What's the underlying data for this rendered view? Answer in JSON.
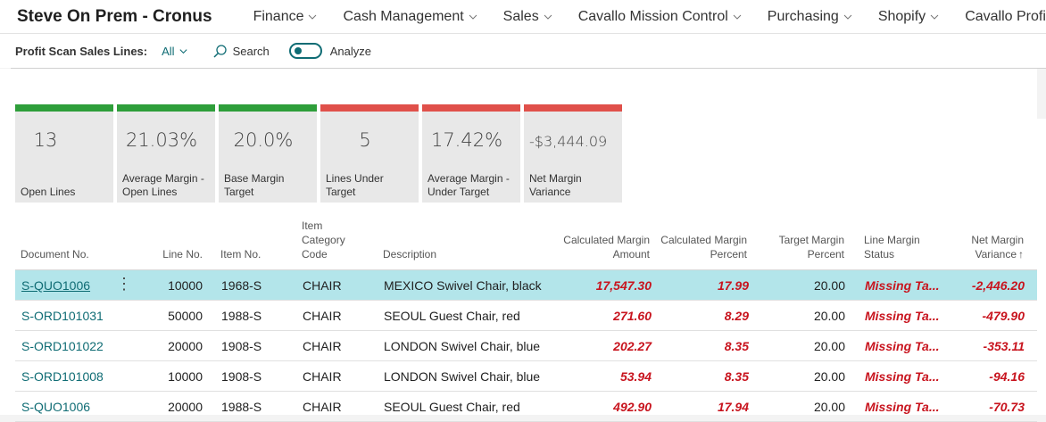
{
  "app": {
    "title": "Steve On Prem - Cronus",
    "nav": [
      {
        "label": "Finance"
      },
      {
        "label": "Cash Management"
      },
      {
        "label": "Sales"
      },
      {
        "label": "Cavallo Mission Control"
      },
      {
        "label": "Purchasing"
      },
      {
        "label": "Shopify"
      },
      {
        "label": "Cavallo Profit Sca"
      }
    ]
  },
  "actionbar": {
    "caption": "Profit Scan Sales Lines:",
    "filter": "All",
    "search_label": "Search",
    "analyze_label": "Analyze"
  },
  "colors": {
    "accent": "#0f6c74",
    "tile_good": "#2e9e3a",
    "tile_bad": "#e0504a",
    "negative": "#c8141e",
    "selected_row": "#b3e5ea"
  },
  "tiles": [
    {
      "value": "13",
      "label": "Open Lines",
      "status": "good"
    },
    {
      "value": "21.03%",
      "label": "Average Margin - Open Lines",
      "status": "good"
    },
    {
      "value": "20.0%",
      "label": "Base Margin Target",
      "status": "good"
    },
    {
      "value": "5",
      "label": "Lines Under Target",
      "status": "bad"
    },
    {
      "value": "17.42%",
      "label": "Average Margin - Under Target",
      "status": "bad"
    },
    {
      "value": "-$3,444.09",
      "label": "Net Margin Variance",
      "status": "bad"
    }
  ],
  "table": {
    "headers": {
      "doc": "Document No.",
      "line": "Line No.",
      "item": "Item No.",
      "category": "Item Category Code",
      "desc": "Description",
      "calc_amt": "Calculated Margin Amount",
      "calc_pct": "Calculated Margin Percent",
      "target": "Target Margin Percent",
      "status": "Line Margin Status",
      "variance": "Net Margin Variance"
    },
    "sort_arrow": "↑",
    "row_menu": "⋮",
    "rows": [
      {
        "doc": "S-QUO1006",
        "line": "10000",
        "item": "1968-S",
        "category": "CHAIR",
        "desc": "MEXICO Swivel Chair, black",
        "calc_amt": "17,547.30",
        "calc_pct": "17.99",
        "target": "20.00",
        "status": "Missing Ta...",
        "variance": "-2,446.20",
        "selected": true
      },
      {
        "doc": "S-ORD101031",
        "line": "50000",
        "item": "1988-S",
        "category": "CHAIR",
        "desc": "SEOUL Guest Chair, red",
        "calc_amt": "271.60",
        "calc_pct": "8.29",
        "target": "20.00",
        "status": "Missing Ta...",
        "variance": "-479.90"
      },
      {
        "doc": "S-ORD101022",
        "line": "20000",
        "item": "1908-S",
        "category": "CHAIR",
        "desc": "LONDON Swivel Chair, blue",
        "calc_amt": "202.27",
        "calc_pct": "8.35",
        "target": "20.00",
        "status": "Missing Ta...",
        "variance": "-353.11"
      },
      {
        "doc": "S-ORD101008",
        "line": "10000",
        "item": "1908-S",
        "category": "CHAIR",
        "desc": "LONDON Swivel Chair, blue",
        "calc_amt": "53.94",
        "calc_pct": "8.35",
        "target": "20.00",
        "status": "Missing Ta...",
        "variance": "-94.16"
      },
      {
        "doc": "S-QUO1006",
        "line": "20000",
        "item": "1988-S",
        "category": "CHAIR",
        "desc": "SEOUL Guest Chair, red",
        "calc_amt": "492.90",
        "calc_pct": "17.94",
        "target": "20.00",
        "status": "Missing Ta...",
        "variance": "-70.73"
      }
    ]
  }
}
